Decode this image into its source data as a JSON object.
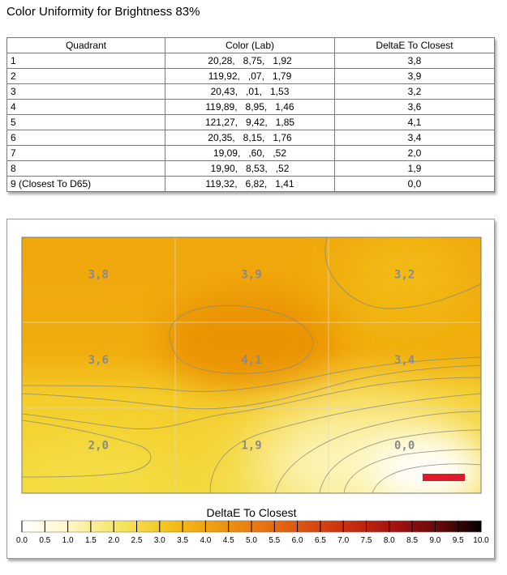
{
  "page": {
    "title": "Color Uniformity for Brightness 83%"
  },
  "table": {
    "headers": [
      "Quadrant",
      "Color (Lab)",
      "DeltaE To Closest"
    ],
    "rows": [
      [
        "1",
        "20,28,   8,75,   1,92",
        "3,8"
      ],
      [
        "2",
        "119,92,   ,07,   1,79",
        "3,9"
      ],
      [
        "3",
        "20,43,   ,01,   1,53",
        "3,2"
      ],
      [
        "4",
        "119,89,   8,95,   1,46",
        "3,6"
      ],
      [
        "5",
        "121,27,   9,42,   1,85",
        "4,1"
      ],
      [
        "6",
        "20,35,   8,15,   1,76",
        "3,4"
      ],
      [
        "7",
        "19,09,   ,60,   ,52",
        "2,0"
      ],
      [
        "8",
        "19,90,   8,53,   ,52",
        "1,9"
      ],
      [
        "9 (Closest To D65)",
        "119,32,   6,82,   1,41",
        "0,0"
      ]
    ]
  },
  "chart_data": {
    "type": "heatmap",
    "title": "",
    "grid": {
      "rows": 3,
      "cols": 3
    },
    "values": [
      [
        3.8,
        3.9,
        3.2
      ],
      [
        3.6,
        4.1,
        3.4
      ],
      [
        2.0,
        1.9,
        0.0
      ]
    ],
    "labels": [
      [
        "3,8",
        "3,9",
        "3,2"
      ],
      [
        "3,6",
        "4,1",
        "3,4"
      ],
      [
        "2,0",
        "1,9",
        "0,0"
      ]
    ],
    "legend": {
      "title": "DeltaE To Closest",
      "range": [
        0,
        10
      ],
      "ticks": [
        "0.0",
        "0.5",
        "1.0",
        "1.5",
        "2.0",
        "2.5",
        "3.0",
        "3.5",
        "4.0",
        "4.5",
        "5.0",
        "5.5",
        "6.0",
        "6.5",
        "7.0",
        "7.5",
        "8.0",
        "8.5",
        "9.0",
        "9.5",
        "10.0"
      ]
    },
    "marker_color": "#e0182c"
  }
}
